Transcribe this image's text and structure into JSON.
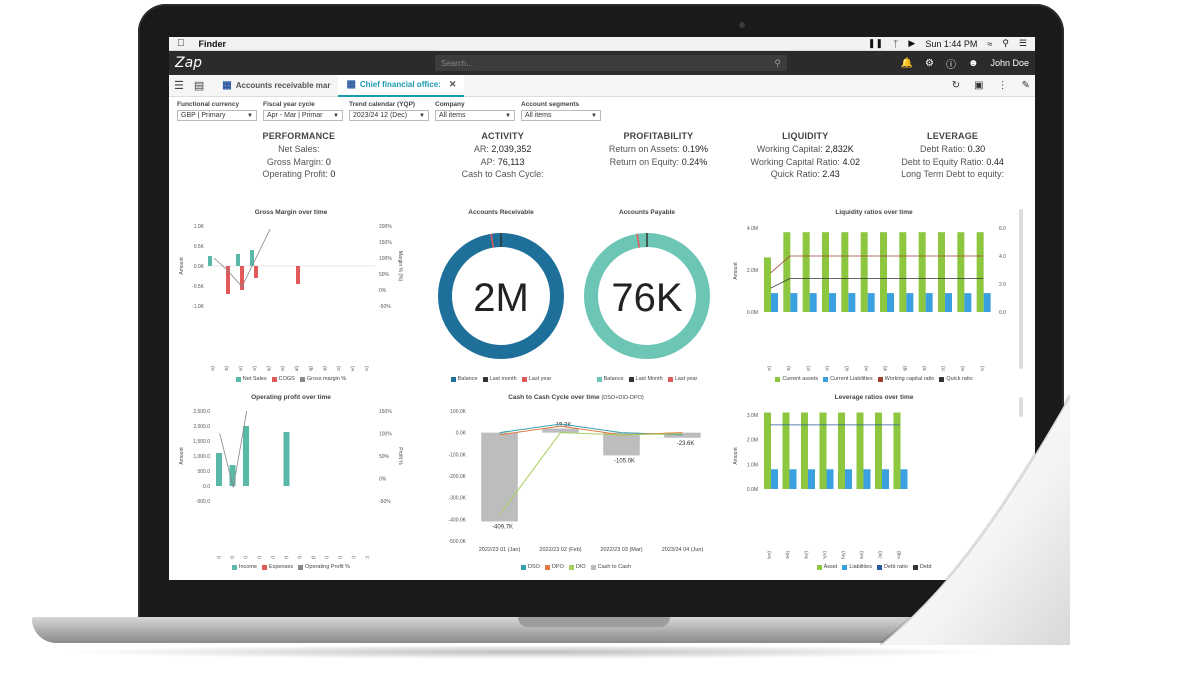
{
  "mac_menu": {
    "app": "Finder",
    "clock": "Sun 1:44 PM"
  },
  "app": {
    "logo": "Zap",
    "search_placeholder": "Search...",
    "user": "John Doe"
  },
  "tabs": [
    {
      "label": "Accounts receivable mar"
    },
    {
      "label": "Chief financial office:"
    }
  ],
  "filters": [
    {
      "label": "Functional currency",
      "value": "GBP | Primary"
    },
    {
      "label": "Fiscal year cycle",
      "value": "Apr - Mar | Primar"
    },
    {
      "label": "Trend calendar (YQP)",
      "value": "2023/24 12 (Dec)"
    },
    {
      "label": "Company",
      "value": "All items"
    },
    {
      "label": "Account segments",
      "value": "All items"
    }
  ],
  "kpi": {
    "performance": {
      "title": "PERFORMANCE",
      "rows": [
        "Net Sales:",
        "Gross Margin:",
        "Operating Profit:"
      ],
      "values": [
        "",
        "0",
        "0"
      ]
    },
    "activity": {
      "title": "ACTIVITY",
      "rows": [
        "AR:",
        "AP:",
        "Cash to Cash Cycle:"
      ],
      "values": [
        "2,039,352",
        "76,113",
        ""
      ]
    },
    "profitability": {
      "title": "PROFITABILITY",
      "rows": [
        "Return on Assets:",
        "Return on Equity:"
      ],
      "values": [
        "0.19%",
        "0.24%"
      ]
    },
    "liquidity": {
      "title": "LIQUIDITY",
      "rows": [
        "Working Capital:",
        "Working Capital Ratio:",
        "Quick Ratio:"
      ],
      "values": [
        "2,832K",
        "4.02",
        "2.43"
      ]
    },
    "leverage": {
      "title": "LEVERAGE",
      "rows": [
        "Debt Ratio:",
        "Debt to Equity Ratio:",
        "Long Term Debt to equity:"
      ],
      "values": [
        "0.30",
        "0.44",
        ""
      ]
    }
  },
  "chart_data": [
    {
      "type": "bar",
      "title": "Gross Margin over time",
      "ylabel": "Amount",
      "y2label": "Margin % (%)",
      "yticks": [
        "1.0K",
        "0.5K",
        "0.0K",
        "-0.5K",
        "-1.0K"
      ],
      "y2ticks": [
        "200%",
        "150%",
        "100%",
        "50%",
        "0%",
        "-50%"
      ],
      "categories": [
        "2022/23 01 (Jan)",
        "2022/23 02 (Feb)",
        "2022/23 03 (Mar)",
        "2023/24 04 (Apr)",
        "2023/24 05 (May)",
        "2023/24 06 (Jun)",
        "2023/24 07 (Jul)",
        "2023/24 08 (Aug)",
        "2023/24 09 (Sep)",
        "2023/24 10 (Oct)",
        "2023/24 11 (Nov)",
        "2023/24 12 (Dec)"
      ],
      "series": [
        {
          "name": "Net Sales",
          "values": [
            0.25,
            0,
            0.3,
            0.4,
            0,
            0,
            0,
            0,
            0,
            0,
            0,
            0
          ]
        },
        {
          "name": "COGS",
          "values": [
            0,
            -0.7,
            -0.6,
            -0.3,
            0,
            0,
            -0.45,
            0,
            0,
            0,
            0,
            0
          ]
        },
        {
          "name": "Gross margin %",
          "values": [
            100,
            60,
            10,
            100,
            190,
            null,
            null,
            null,
            null,
            null,
            null,
            null
          ]
        }
      ],
      "colors": [
        "#5ab8a8",
        "#e05a5a",
        "#888888"
      ]
    },
    {
      "type": "pie",
      "title": "Accounts Receivable",
      "center_label": "2M",
      "legend": [
        "Balance",
        "Last month",
        "Last year"
      ],
      "colors": [
        "#1e6f9a",
        "#333333",
        "#e05a5a"
      ]
    },
    {
      "type": "pie",
      "title": "Accounts Payable",
      "center_label": "76K",
      "legend": [
        "Balance",
        "Last Month",
        "Last year"
      ],
      "colors": [
        "#6cc5b5",
        "#333333",
        "#e05a5a"
      ]
    },
    {
      "type": "bar",
      "title": "Liquidity ratios over time",
      "ylabel": "Amount",
      "yticks": [
        "4.0M",
        "2.0M",
        "0.0M"
      ],
      "y2ticks": [
        "6.0",
        "4.0",
        "2.0",
        "0.0"
      ],
      "categories": [
        "2022/23 01 (Jan)",
        "2022/23 02 (Feb)",
        "2022/23 03 (Mar)",
        "2023/24 04 (Apr)",
        "2023/24 05 (May)",
        "2023/24 06 (Jun)",
        "2023/24 07 (Jul)",
        "2023/24 08 (Aug)",
        "2023/24 09 (Sep)",
        "2023/24 10 (Oct)",
        "2023/24 11 (Nov)",
        "2023/24 12 (Dec)"
      ],
      "series": [
        {
          "name": "Current assets",
          "values": [
            2.6,
            3.8,
            3.8,
            3.8,
            3.8,
            3.8,
            3.8,
            3.8,
            3.8,
            3.8,
            3.8,
            3.8
          ]
        },
        {
          "name": "Current Liabilities",
          "values": [
            0.9,
            0.9,
            0.9,
            0.9,
            0.9,
            0.9,
            0.9,
            0.9,
            0.9,
            0.9,
            0.9,
            0.9
          ]
        },
        {
          "name": "Working capital ratio",
          "values": [
            2.8,
            4.0,
            4.0,
            4.0,
            4.0,
            4.0,
            4.0,
            4.0,
            4.0,
            4.0,
            4.0,
            4.0
          ]
        },
        {
          "name": "Quick ratio",
          "values": [
            1.7,
            2.4,
            2.4,
            2.4,
            2.4,
            2.4,
            2.4,
            2.4,
            2.4,
            2.4,
            2.4,
            2.4
          ]
        }
      ],
      "colors": [
        "#8dc63f",
        "#3aa0e0",
        "#a04030",
        "#333333"
      ]
    },
    {
      "type": "bar",
      "title": "Operating profit over time",
      "ylabel": "Amount",
      "y2label": "Profit %",
      "yticks": [
        "2,500.0",
        "2,000.0",
        "1,500.0",
        "1,000.0",
        "500.0",
        "0.0",
        "-500.0"
      ],
      "y2ticks": [
        "150%",
        "100%",
        "50%",
        "0%",
        "-50%"
      ],
      "categories": [
        "2022/23 01 (Jan)",
        "2022/23 02 (Feb)",
        "2022/23 03 (Mar)",
        "2023/24 04 (Apr)",
        "2023/24 05 (May)",
        "2023/24 06 (Jun)",
        "2023/24 07 (Jul)",
        "2023/24 08 (Aug)",
        "2023/24 09 (Sep)",
        "2023/24 10 (Oct)",
        "2023/24 11 (Nov)",
        "2023/24 12 (Dec)"
      ],
      "series": [
        {
          "name": "Income",
          "values": [
            1100,
            700,
            2000,
            0,
            0,
            1800,
            0,
            0,
            0,
            0,
            0,
            0
          ]
        },
        {
          "name": "Expenses",
          "values": [
            0,
            0,
            0,
            0,
            0,
            0,
            0,
            0,
            0,
            0,
            0,
            0
          ]
        },
        {
          "name": "Operating Profit %",
          "values": [
            100,
            -20,
            150,
            null,
            null,
            null,
            null,
            null,
            null,
            null,
            null,
            null
          ]
        }
      ],
      "colors": [
        "#5ab8a8",
        "#e05a5a",
        "#888888"
      ]
    },
    {
      "type": "line",
      "title": "Cash to Cash Cycle over time",
      "subtitle": "(DSO+DIO-DPO)",
      "yticks": [
        "100.0K",
        "0.0K",
        "-100.0K",
        "-200.0K",
        "-300.0K",
        "-400.0K",
        "-500.0K"
      ],
      "categories": [
        "2022/23 01 (Jan)",
        "2022/23 02 (Feb)",
        "2022/23 03 (Mar)",
        "2023/24 04 (Jun)"
      ],
      "bar_values": [
        -409.7,
        19.3,
        -105.0,
        -23.6
      ],
      "bar_labels": [
        "-409.7K",
        "19.3K",
        "-105.0K",
        "-23.6K"
      ],
      "series": [
        {
          "name": "DSO",
          "values": [
            0,
            40,
            0,
            -10
          ]
        },
        {
          "name": "DPO",
          "values": [
            -10,
            30,
            -10,
            0
          ]
        },
        {
          "name": "DIO",
          "values": [
            -380,
            0,
            -10,
            -5
          ]
        },
        {
          "name": "Cash to Cash",
          "values": [
            -409.7,
            19.3,
            -105.0,
            -23.6
          ]
        }
      ],
      "colors": [
        "#3aa0b0",
        "#e07a40",
        "#a8d060",
        "#bbbbbb"
      ]
    },
    {
      "type": "bar",
      "title": "Leverage ratios over time",
      "ylabel": "Amount",
      "yticks": [
        "3.0M",
        "2.0M",
        "1.0M",
        "0.0M"
      ],
      "categories": [
        "2022/23 01 (Jan)",
        "2022/23 02 (Feb)",
        "2022/23 03 (Mar)",
        "2023/24 04 (Apr)",
        "2023/24 05 (May)",
        "2023/24 06 (Jun)",
        "2023/24 07 (Jul)",
        "2023/24 08 (Aug)"
      ],
      "series": [
        {
          "name": "Asset",
          "values": [
            3.1,
            3.1,
            3.1,
            3.1,
            3.1,
            3.1,
            3.1,
            3.1
          ]
        },
        {
          "name": "Liabilities",
          "values": [
            0.8,
            0.8,
            0.8,
            0.8,
            0.8,
            0.8,
            0.8,
            0.8
          ]
        },
        {
          "name": "Debt ratio",
          "values": [
            2.6,
            2.6,
            2.6,
            2.6,
            2.6,
            2.6,
            2.6,
            2.6
          ]
        },
        {
          "name": "Debt",
          "values": [
            0,
            0,
            0,
            0,
            0,
            0,
            0,
            0
          ]
        }
      ],
      "colors": [
        "#8dc63f",
        "#3aa0e0",
        "#2a5aa0",
        "#333333"
      ]
    }
  ]
}
